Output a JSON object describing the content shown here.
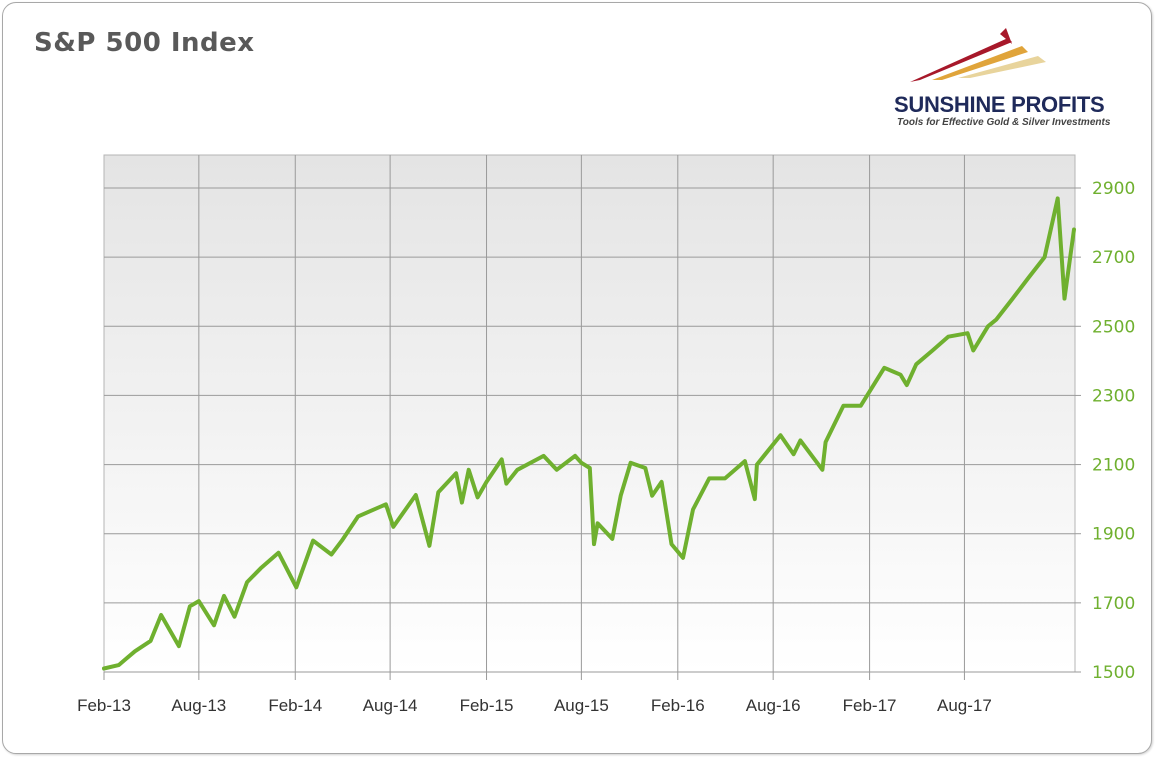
{
  "chart_data": {
    "type": "line",
    "title": "S&P 500 Index",
    "xlabel": "",
    "ylabel": "",
    "x_ticks": [
      "Feb-13",
      "Aug-13",
      "Feb-14",
      "Aug-14",
      "Feb-15",
      "Aug-15",
      "Feb-16",
      "Aug-16",
      "Feb-17",
      "Aug-17"
    ],
    "y_ticks": [
      1500,
      1700,
      1900,
      2100,
      2300,
      2500,
      2700,
      2900
    ],
    "ylim": [
      1500,
      2900
    ],
    "xlim": [
      "2013-02-01",
      "2018-02-28"
    ],
    "grid": true,
    "y_axis_side": "right",
    "line_color": "#6fb02f",
    "series": [
      {
        "x": [
          "2013-02-01",
          "2013-03-01",
          "2013-04-01",
          "2013-05-01",
          "2013-05-21",
          "2013-06-24",
          "2013-07-15",
          "2013-08-01",
          "2013-08-30",
          "2013-09-18",
          "2013-10-08",
          "2013-11-01",
          "2013-11-27",
          "2013-12-31",
          "2014-02-03",
          "2014-03-07",
          "2014-04-11",
          "2014-05-01",
          "2014-06-01",
          "2014-07-24",
          "2014-08-07",
          "2014-09-19",
          "2014-10-15",
          "2014-11-01",
          "2014-12-05",
          "2014-12-16",
          "2014-12-29",
          "2015-01-15",
          "2015-02-01",
          "2015-03-02",
          "2015-03-11",
          "2015-04-01",
          "2015-05-21",
          "2015-06-15",
          "2015-07-20",
          "2015-08-01",
          "2015-08-17",
          "2015-08-25",
          "2015-09-01",
          "2015-09-29",
          "2015-10-15",
          "2015-11-03",
          "2015-12-01",
          "2015-12-14",
          "2016-01-01",
          "2016-01-20",
          "2016-02-11",
          "2016-03-01",
          "2016-04-01",
          "2016-05-01",
          "2016-06-08",
          "2016-06-27",
          "2016-07-01",
          "2016-08-15",
          "2016-09-09",
          "2016-09-22",
          "2016-11-03",
          "2016-11-09",
          "2016-12-13",
          "2017-01-15",
          "2017-03-01",
          "2017-04-01",
          "2017-04-13",
          "2017-05-01",
          "2017-06-01",
          "2017-07-01",
          "2017-08-07",
          "2017-08-18",
          "2017-09-15",
          "2017-10-01",
          "2017-11-01",
          "2017-12-01",
          "2018-01-01",
          "2018-01-26",
          "2018-02-08",
          "2018-02-26"
        ],
        "y": [
          1510,
          1520,
          1560,
          1590,
          1665,
          1575,
          1690,
          1705,
          1635,
          1720,
          1660,
          1760,
          1800,
          1845,
          1745,
          1880,
          1840,
          1880,
          1950,
          1985,
          1920,
          2012,
          1865,
          2020,
          2075,
          1990,
          2085,
          2005,
          2050,
          2115,
          2045,
          2085,
          2125,
          2085,
          2125,
          2105,
          2090,
          1870,
          1930,
          1885,
          2010,
          2105,
          2090,
          2010,
          2050,
          1870,
          1830,
          1970,
          2060,
          2060,
          2110,
          2000,
          2100,
          2185,
          2130,
          2170,
          2085,
          2165,
          2270,
          2270,
          2380,
          2360,
          2330,
          2390,
          2430,
          2470,
          2480,
          2430,
          2500,
          2520,
          2580,
          2640,
          2700,
          2870,
          2580,
          2780
        ]
      }
    ]
  },
  "logo": {
    "name": "SUNSHINE PROFITS",
    "tagline": "Tools for Effective Gold & Silver Investments"
  }
}
